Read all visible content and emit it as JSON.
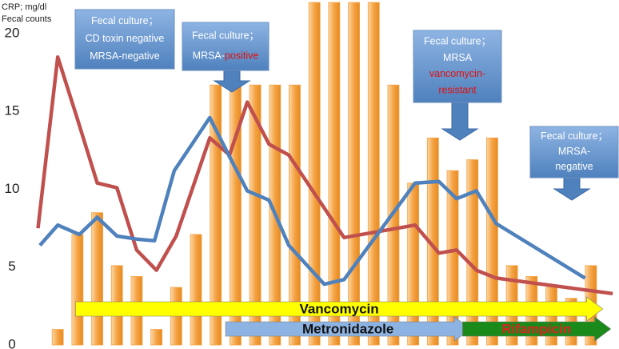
{
  "chart_data": {
    "type": "bar_line",
    "axis_label_lines": [
      "CRP; mg/dl",
      "Fecal counts"
    ],
    "ylim": [
      0,
      20
    ],
    "yticks": [
      0,
      5,
      10,
      15,
      20
    ],
    "xlim": [
      -0.1,
      29.3
    ],
    "bars": {
      "color": "#f5a343",
      "x": [
        1,
        2,
        3,
        4,
        5,
        6,
        7,
        8,
        9,
        10,
        11,
        12,
        13,
        14,
        15,
        16,
        17,
        18,
        19,
        20,
        21,
        22,
        23,
        24,
        25,
        26,
        27,
        28
      ],
      "values": [
        1,
        7.1,
        8.5,
        5.1,
        4.4,
        1,
        3.7,
        7.1,
        16.7,
        16.7,
        16.7,
        16.7,
        16.7,
        22,
        22,
        22,
        22,
        16.7,
        10.4,
        13.3,
        11.2,
        11.9,
        13.3,
        5.1,
        4.4,
        3.7,
        3,
        5.1
      ]
    },
    "lines": [
      {
        "color": "#c0504d",
        "x": [
          0,
          1,
          2,
          3,
          4,
          5,
          6,
          7,
          8.7,
          9.7,
          10.6,
          11.7,
          12.7,
          15.5,
          19.1,
          20.3,
          21.2,
          22.2,
          23.2,
          29.1
        ],
        "values": [
          7.5,
          18.5,
          14.5,
          10.4,
          10.1,
          6.1,
          4.8,
          7,
          13.3,
          12.2,
          15.6,
          12.9,
          12.2,
          6.9,
          7.7,
          5.9,
          6.1,
          4.8,
          4.3,
          3.3
        ]
      },
      {
        "color": "#4f81bd",
        "x": [
          0.1,
          1,
          2.1,
          3,
          4,
          5,
          5.9,
          6.9,
          8.7,
          9.7,
          10.6,
          11.7,
          12.7,
          14.5,
          15.5,
          19.1,
          20.3,
          21.2,
          22.2,
          23.2,
          27.7
        ],
        "values": [
          6.4,
          7.7,
          7.1,
          8.2,
          7,
          6.8,
          6.7,
          11.2,
          14.6,
          12.1,
          9.9,
          9.3,
          6.4,
          3.9,
          4.2,
          10.4,
          10.5,
          9.4,
          9.9,
          7.8,
          4.3
        ]
      }
    ],
    "callouts": [
      {
        "lines": [
          [
            {
              "text": "Fecal culture；",
              "color": "#ffffff"
            }
          ],
          [
            {
              "text": "CD toxin  negative",
              "color": "#ffffff"
            }
          ],
          [
            {
              "text": "MRSA-negative",
              "color": "#ffffff"
            }
          ]
        ]
      },
      {
        "lines": [
          [
            {
              "text": "Fecal culture；",
              "color": "#ffffff"
            }
          ],
          [
            {
              "text": "MRSA-",
              "color": "#ffffff"
            },
            {
              "text": "positive",
              "color": "#e01010"
            }
          ]
        ]
      },
      {
        "lines": [
          [
            {
              "text": "Fecal culture；",
              "color": "#ffffff"
            }
          ],
          [
            {
              "text": "MRSA",
              "color": "#ffffff"
            }
          ],
          [
            {
              "text": "vancomycin-",
              "color": "#e01010"
            }
          ],
          [
            {
              "text": "resistant",
              "color": "#e01010"
            }
          ]
        ]
      },
      {
        "lines": [
          [
            {
              "text": "Fecal culture；",
              "color": "#ffffff"
            }
          ],
          [
            {
              "text": "MRSA-",
              "color": "#ffffff"
            }
          ],
          [
            {
              "text": "negative",
              "color": "#ffffff"
            }
          ]
        ]
      }
    ],
    "therapies": [
      {
        "label": "Vancomycin",
        "color": "#ffff00",
        "text_color": "#111111",
        "start": 1.9,
        "end": 28.6
      },
      {
        "label": "Metronidazole",
        "color": "#8db3e2",
        "text_color": "#111111",
        "start": 9.5,
        "end": 21.9
      },
      {
        "label": "Rifampicin",
        "color": "#1a8a1a",
        "text_color": "#e02020",
        "start": 21.5,
        "end": 29
      }
    ]
  }
}
